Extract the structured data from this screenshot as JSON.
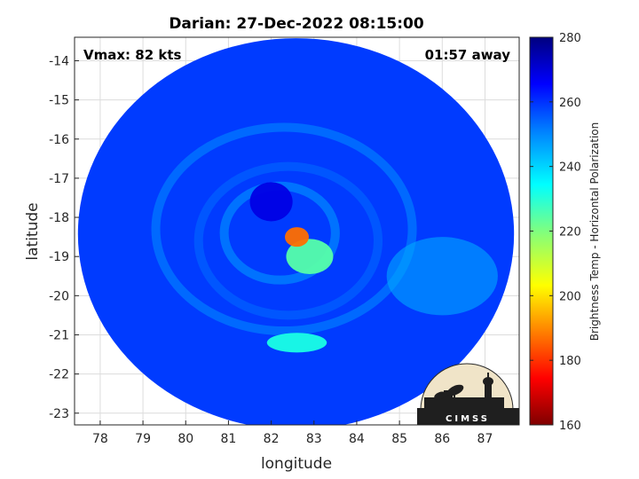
{
  "chart_data": {
    "type": "heatmap",
    "title": "Darian: 27-Dec-2022 08:15:00",
    "xlabel": "longitude",
    "ylabel": "latitude",
    "xlim": [
      77.4,
      87.8
    ],
    "ylim": [
      -23.3,
      -13.4
    ],
    "xticks": [
      78,
      79,
      80,
      81,
      82,
      83,
      84,
      85,
      86,
      87
    ],
    "yticks": [
      -14,
      -15,
      -16,
      -17,
      -18,
      -19,
      -20,
      -21,
      -22,
      -23
    ],
    "grid": true,
    "annotations": {
      "vmax": "Vmax: 82 kts",
      "time_away": "01:57 away"
    },
    "colorbar": {
      "label": "Brightness Temp - Horizontal Polarization",
      "range": [
        160,
        280
      ],
      "ticks": [
        160,
        180,
        200,
        220,
        240,
        260,
        280
      ],
      "colormap": [
        "#7f0000",
        "#ff0000",
        "#ff7f00",
        "#ffff00",
        "#7fff7f",
        "#00ffff",
        "#007fff",
        "#0000ff",
        "#00007f"
      ]
    },
    "swath": {
      "center_lon": 82.6,
      "center_lat": -18.4,
      "radius_deg": 5.1,
      "background_tb": 258
    },
    "features": [
      {
        "name": "warm core",
        "lon": 82.6,
        "lat": -18.5,
        "tb": 188
      },
      {
        "name": "inner core",
        "lon": 82.9,
        "lat": -19.0,
        "tb": 225
      },
      {
        "name": "eye",
        "lon": 82.0,
        "lat": -17.6,
        "tb": 268
      },
      {
        "name": "southern rainband",
        "lon": 82.6,
        "lat": -21.2,
        "tb": 232
      },
      {
        "name": "eastern rainband",
        "lon": 86.0,
        "lat": -19.5,
        "tb": 245
      }
    ]
  },
  "logo": {
    "text": "CIMSS"
  }
}
